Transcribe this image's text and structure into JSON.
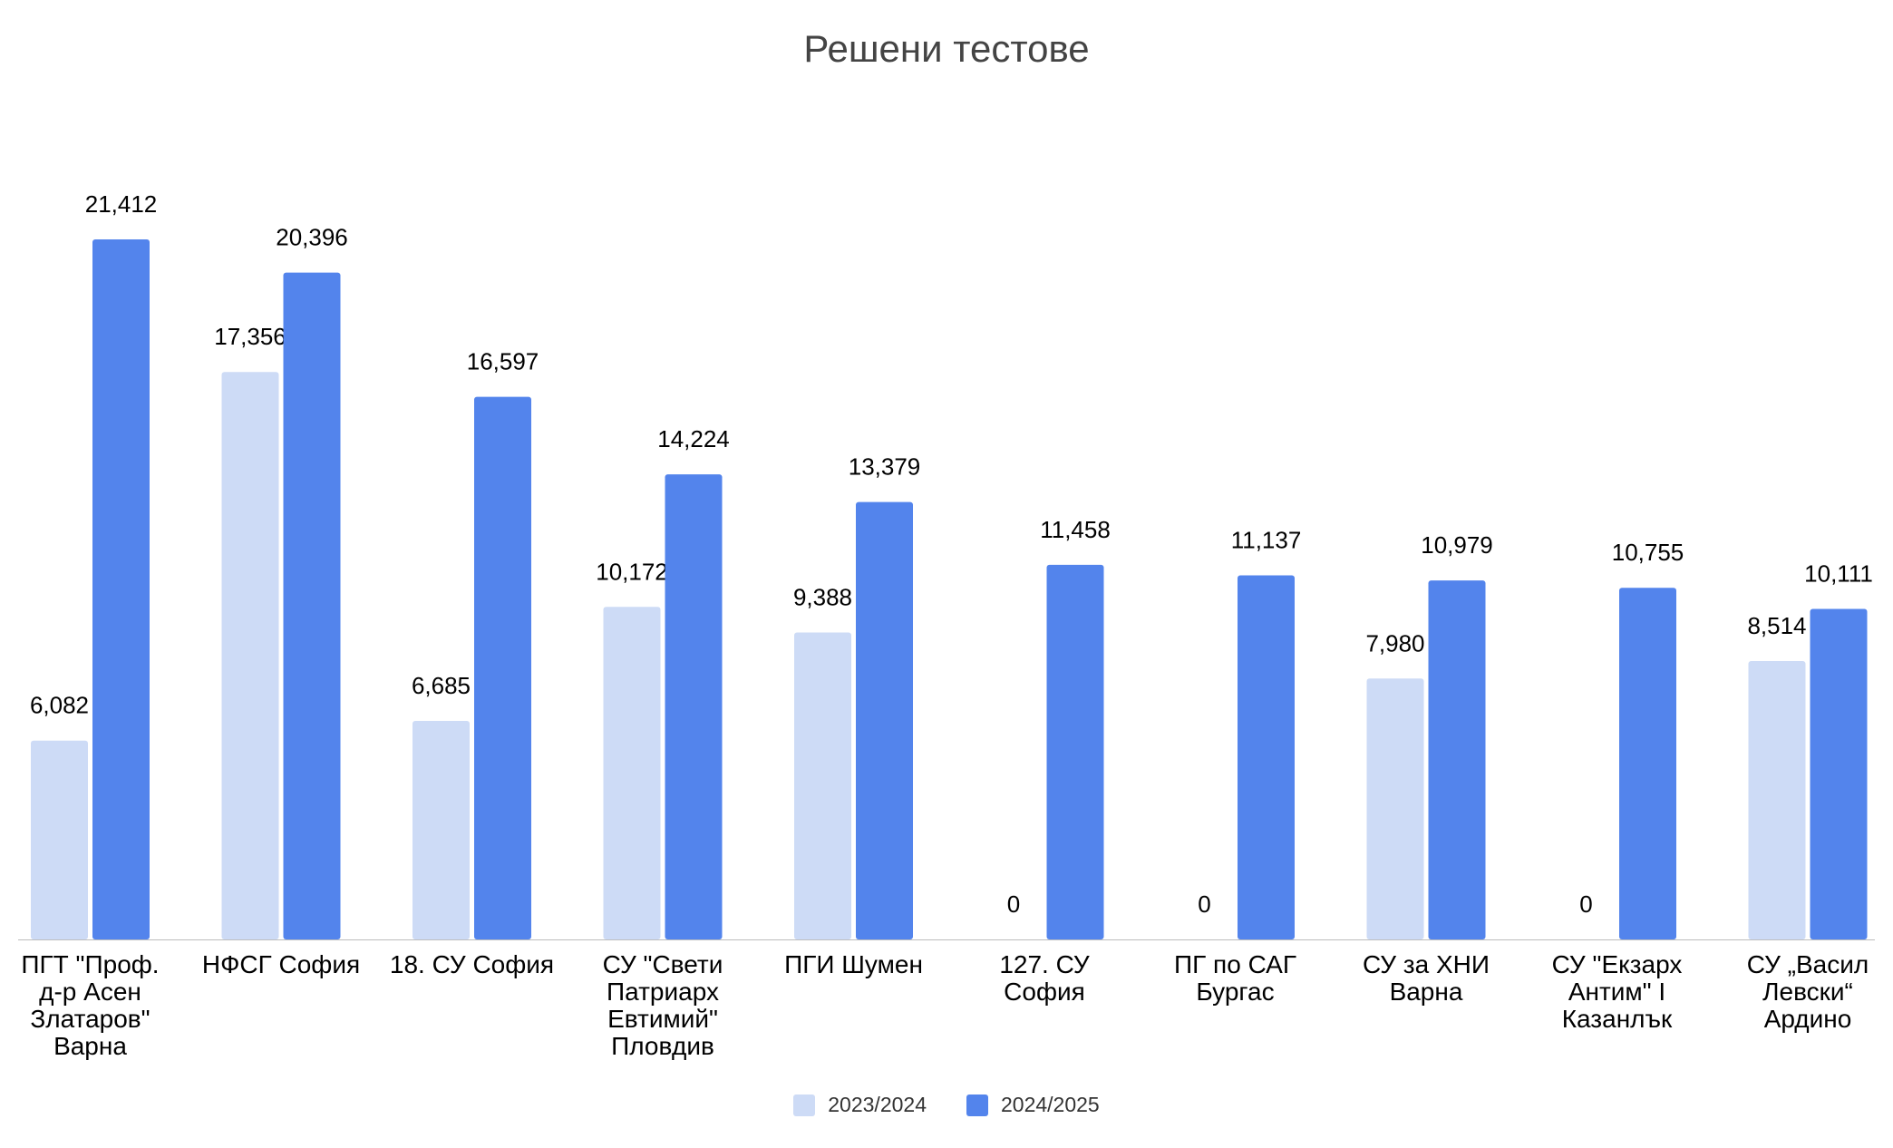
{
  "chart_data": {
    "type": "bar",
    "title": "Решени тестове",
    "xlabel": "",
    "ylabel": "",
    "ylim": [
      0,
      22000
    ],
    "grid": false,
    "legend_position": "bottom",
    "categories": [
      [
        "ПГТ \"Проф.",
        "д-р Асен",
        "Златаров\"",
        "Варна"
      ],
      [
        "НФСГ София"
      ],
      [
        "18. СУ София"
      ],
      [
        "СУ \"Свети",
        "Патриарх",
        "Евтимий\"",
        "Пловдив"
      ],
      [
        "ПГИ Шумен"
      ],
      [
        "127. СУ",
        "София"
      ],
      [
        "ПГ по САГ",
        "Бургас"
      ],
      [
        "СУ за ХНИ",
        "Варна"
      ],
      [
        "СУ \"Екзарх",
        "Антим\" I",
        "Казанлък"
      ],
      [
        "СУ „Васил",
        "Левски“",
        "Ардино"
      ]
    ],
    "series": [
      {
        "name": "2023/2024",
        "color": "#cddbf6",
        "values": [
          6082,
          17356,
          6685,
          10172,
          9388,
          0,
          0,
          7980,
          0,
          8514
        ],
        "labels": [
          "6,082",
          "17,356",
          "6,685",
          "10,172",
          "9,388",
          "0",
          "0",
          "7,980",
          "0",
          "8,514"
        ]
      },
      {
        "name": "2024/2025",
        "color": "#5384ec",
        "values": [
          21412,
          20396,
          16597,
          14224,
          13379,
          11458,
          11137,
          10979,
          10755,
          10111
        ],
        "labels": [
          "21,412",
          "20,396",
          "16,597",
          "14,224",
          "13,379",
          "11,458",
          "11,137",
          "10,979",
          "10,755",
          "10,111"
        ]
      }
    ]
  }
}
